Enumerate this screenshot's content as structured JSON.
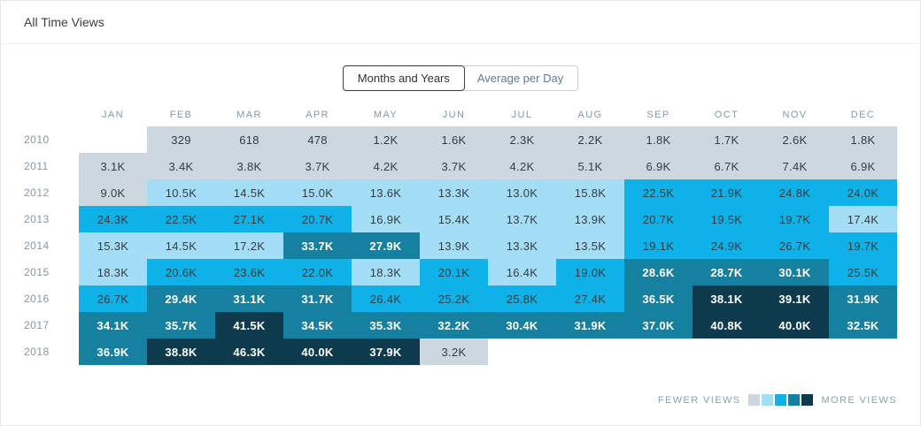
{
  "header": {
    "title": "All Time Views"
  },
  "tabs": {
    "months_years_label": "Months and Years",
    "average_per_day_label": "Average per Day",
    "active_tab": "Months and Years"
  },
  "chart_data": {
    "type": "heatmap",
    "title": "All Time Views",
    "columns": [
      "JAN",
      "FEB",
      "MAR",
      "APR",
      "MAY",
      "JUN",
      "JUL",
      "AUG",
      "SEP",
      "OCT",
      "NOV",
      "DEC"
    ],
    "rows": [
      "2010",
      "2011",
      "2012",
      "2013",
      "2014",
      "2015",
      "2016",
      "2017",
      "2018"
    ],
    "values": [
      [
        "",
        "329",
        "618",
        "478",
        "1.2K",
        "1.6K",
        "2.3K",
        "2.2K",
        "1.8K",
        "1.7K",
        "2.6K",
        "1.8K"
      ],
      [
        "3.1K",
        "3.4K",
        "3.8K",
        "3.7K",
        "4.2K",
        "3.7K",
        "4.2K",
        "5.1K",
        "6.9K",
        "6.7K",
        "7.4K",
        "6.9K"
      ],
      [
        "9.0K",
        "10.5K",
        "14.5K",
        "15.0K",
        "13.6K",
        "13.3K",
        "13.0K",
        "15.8K",
        "22.5K",
        "21.9K",
        "24.8K",
        "24.0K"
      ],
      [
        "24.3K",
        "22.5K",
        "27.1K",
        "20.7K",
        "16.9K",
        "15.4K",
        "13.7K",
        "13.9K",
        "20.7K",
        "19.5K",
        "19.7K",
        "17.4K"
      ],
      [
        "15.3K",
        "14.5K",
        "17.2K",
        "33.7K",
        "27.9K",
        "13.9K",
        "13.3K",
        "13.5K",
        "19.1K",
        "24.9K",
        "26.7K",
        "19.7K"
      ],
      [
        "18.3K",
        "20.6K",
        "23.6K",
        "22.0K",
        "18.3K",
        "20.1K",
        "16.4K",
        "19.0K",
        "28.6K",
        "28.7K",
        "30.1K",
        "25.5K"
      ],
      [
        "26.7K",
        "29.4K",
        "31.1K",
        "31.7K",
        "26.4K",
        "25.2K",
        "25.8K",
        "27.4K",
        "36.5K",
        "38.1K",
        "39.1K",
        "31.9K"
      ],
      [
        "34.1K",
        "35.7K",
        "41.5K",
        "34.5K",
        "35.3K",
        "32.2K",
        "30.4K",
        "31.9K",
        "37.0K",
        "40.8K",
        "40.0K",
        "32.5K"
      ],
      [
        "36.9K",
        "38.8K",
        "46.3K",
        "40.0K",
        "37.9K",
        "3.2K",
        "",
        "",
        "",
        "",
        "",
        ""
      ]
    ],
    "levels": [
      [
        null,
        0,
        0,
        0,
        0,
        0,
        0,
        0,
        0,
        0,
        0,
        0
      ],
      [
        0,
        0,
        0,
        0,
        0,
        0,
        0,
        0,
        0,
        0,
        0,
        0
      ],
      [
        0,
        1,
        1,
        1,
        1,
        1,
        1,
        1,
        2,
        2,
        2,
        2
      ],
      [
        2,
        2,
        2,
        2,
        1,
        1,
        1,
        1,
        2,
        2,
        2,
        1
      ],
      [
        1,
        1,
        1,
        3,
        3,
        1,
        1,
        1,
        2,
        2,
        2,
        2
      ],
      [
        1,
        2,
        2,
        2,
        1,
        2,
        1,
        2,
        3,
        3,
        3,
        2
      ],
      [
        2,
        3,
        3,
        3,
        2,
        2,
        2,
        2,
        3,
        4,
        4,
        3
      ],
      [
        3,
        3,
        4,
        3,
        3,
        3,
        3,
        3,
        3,
        4,
        4,
        3
      ],
      [
        3,
        4,
        4,
        4,
        4,
        0,
        null,
        null,
        null,
        null,
        null,
        null
      ]
    ],
    "level_colors": [
      "#ccd7e0",
      "#a4ddf6",
      "#0eb2e8",
      "#15809f",
      "#0d3b4d"
    ],
    "level_text_colors": [
      "#323c44",
      "#323c44",
      "#323c44",
      "#ffffff",
      "#ffffff"
    ],
    "legend_position": "bottom-right"
  },
  "legend": {
    "fewer_label": "FEWER VIEWS",
    "more_label": "MORE VIEWS"
  }
}
